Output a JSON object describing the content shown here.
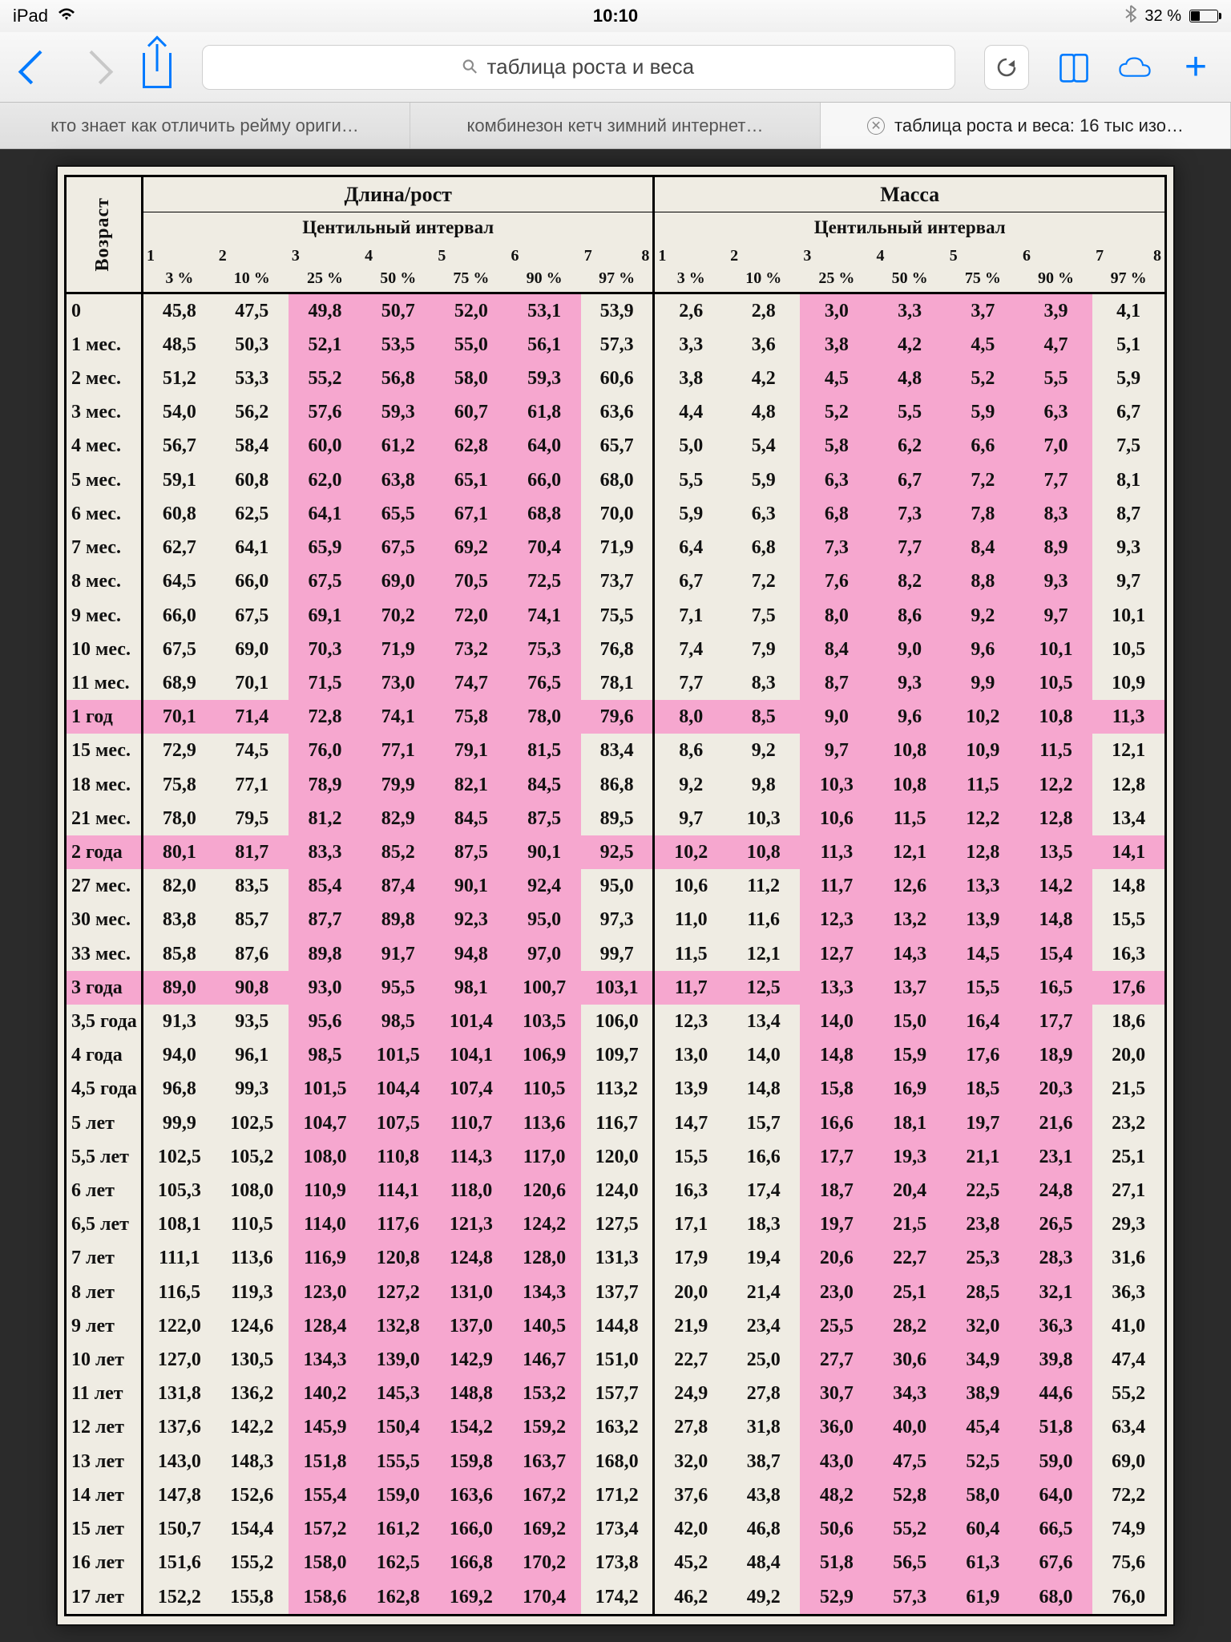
{
  "status": {
    "device": "iPad",
    "time": "10:10",
    "battery_pct": "32 %",
    "bt_glyph": "✲"
  },
  "toolbar": {
    "address_query": "таблица роста и веса",
    "search_glyph": "⚲",
    "reload_glyph": "↻"
  },
  "tabs": [
    {
      "label": "кто знает как отличить рейму ориги…"
    },
    {
      "label": "комбинезон кетч зимний интернет…"
    },
    {
      "label": "таблица роста и веса: 16 тыс изо…"
    }
  ],
  "table": {
    "age_header": "Возраст",
    "length_title": "Длина/рост",
    "mass_title": "Масса",
    "centile_label": "Центильный интервал",
    "col_nums_left": [
      "1",
      "2",
      "3",
      "4",
      "5",
      "6",
      "7",
      "8"
    ],
    "col_nums_right": [
      "1",
      "2",
      "3",
      "4",
      "5",
      "6",
      "7",
      "8"
    ],
    "col_pcts": [
      "3 %",
      "10 %",
      "25 %",
      "50 %",
      "75 %",
      "90 %",
      "97 %"
    ],
    "highlight_color": "#f6a7cf",
    "left_hl_cols": [
      2,
      3,
      4,
      5
    ],
    "right_hl_cols": [
      2,
      3,
      4,
      5
    ],
    "highlight_age_rows": [
      "1 год",
      "2 года",
      "3 года"
    ],
    "rows": [
      {
        "age": "0",
        "L": [
          "45,8",
          "47,5",
          "49,8",
          "50,7",
          "52,0",
          "53,1",
          "53,9"
        ],
        "M": [
          "2,6",
          "2,8",
          "3,0",
          "3,3",
          "3,7",
          "3,9",
          "4,1"
        ]
      },
      {
        "age": "1 мес.",
        "L": [
          "48,5",
          "50,3",
          "52,1",
          "53,5",
          "55,0",
          "56,1",
          "57,3"
        ],
        "M": [
          "3,3",
          "3,6",
          "3,8",
          "4,2",
          "4,5",
          "4,7",
          "5,1"
        ]
      },
      {
        "age": "2 мес.",
        "L": [
          "51,2",
          "53,3",
          "55,2",
          "56,8",
          "58,0",
          "59,3",
          "60,6"
        ],
        "M": [
          "3,8",
          "4,2",
          "4,5",
          "4,8",
          "5,2",
          "5,5",
          "5,9"
        ]
      },
      {
        "age": "3 мес.",
        "L": [
          "54,0",
          "56,2",
          "57,6",
          "59,3",
          "60,7",
          "61,8",
          "63,6"
        ],
        "M": [
          "4,4",
          "4,8",
          "5,2",
          "5,5",
          "5,9",
          "6,3",
          "6,7"
        ]
      },
      {
        "age": "4 мес.",
        "L": [
          "56,7",
          "58,4",
          "60,0",
          "61,2",
          "62,8",
          "64,0",
          "65,7"
        ],
        "M": [
          "5,0",
          "5,4",
          "5,8",
          "6,2",
          "6,6",
          "7,0",
          "7,5"
        ]
      },
      {
        "age": "5 мес.",
        "L": [
          "59,1",
          "60,8",
          "62,0",
          "63,8",
          "65,1",
          "66,0",
          "68,0"
        ],
        "M": [
          "5,5",
          "5,9",
          "6,3",
          "6,7",
          "7,2",
          "7,7",
          "8,1"
        ]
      },
      {
        "age": "6 мес.",
        "L": [
          "60,8",
          "62,5",
          "64,1",
          "65,5",
          "67,1",
          "68,8",
          "70,0"
        ],
        "M": [
          "5,9",
          "6,3",
          "6,8",
          "7,3",
          "7,8",
          "8,3",
          "8,7"
        ]
      },
      {
        "age": "7 мес.",
        "L": [
          "62,7",
          "64,1",
          "65,9",
          "67,5",
          "69,2",
          "70,4",
          "71,9"
        ],
        "M": [
          "6,4",
          "6,8",
          "7,3",
          "7,7",
          "8,4",
          "8,9",
          "9,3"
        ]
      },
      {
        "age": "8 мес.",
        "L": [
          "64,5",
          "66,0",
          "67,5",
          "69,0",
          "70,5",
          "72,5",
          "73,7"
        ],
        "M": [
          "6,7",
          "7,2",
          "7,6",
          "8,2",
          "8,8",
          "9,3",
          "9,7"
        ]
      },
      {
        "age": "9 мес.",
        "L": [
          "66,0",
          "67,5",
          "69,1",
          "70,2",
          "72,0",
          "74,1",
          "75,5"
        ],
        "M": [
          "7,1",
          "7,5",
          "8,0",
          "8,6",
          "9,2",
          "9,7",
          "10,1"
        ]
      },
      {
        "age": "10 мес.",
        "L": [
          "67,5",
          "69,0",
          "70,3",
          "71,9",
          "73,2",
          "75,3",
          "76,8"
        ],
        "M": [
          "7,4",
          "7,9",
          "8,4",
          "9,0",
          "9,6",
          "10,1",
          "10,5"
        ]
      },
      {
        "age": "11 мес.",
        "L": [
          "68,9",
          "70,1",
          "71,5",
          "73,0",
          "74,7",
          "76,5",
          "78,1"
        ],
        "M": [
          "7,7",
          "8,3",
          "8,7",
          "9,3",
          "9,9",
          "10,5",
          "10,9"
        ]
      },
      {
        "age": "1 год",
        "L": [
          "70,1",
          "71,4",
          "72,8",
          "74,1",
          "75,8",
          "78,0",
          "79,6"
        ],
        "M": [
          "8,0",
          "8,5",
          "9,0",
          "9,6",
          "10,2",
          "10,8",
          "11,3"
        ]
      },
      {
        "age": "15 мес.",
        "L": [
          "72,9",
          "74,5",
          "76,0",
          "77,1",
          "79,1",
          "81,5",
          "83,4"
        ],
        "M": [
          "8,6",
          "9,2",
          "9,7",
          "10,8",
          "10,9",
          "11,5",
          "12,1"
        ]
      },
      {
        "age": "18 мес.",
        "L": [
          "75,8",
          "77,1",
          "78,9",
          "79,9",
          "82,1",
          "84,5",
          "86,8"
        ],
        "M": [
          "9,2",
          "9,8",
          "10,3",
          "10,8",
          "11,5",
          "12,2",
          "12,8"
        ]
      },
      {
        "age": "21 мес.",
        "L": [
          "78,0",
          "79,5",
          "81,2",
          "82,9",
          "84,5",
          "87,5",
          "89,5"
        ],
        "M": [
          "9,7",
          "10,3",
          "10,6",
          "11,5",
          "12,2",
          "12,8",
          "13,4"
        ]
      },
      {
        "age": "2 года",
        "L": [
          "80,1",
          "81,7",
          "83,3",
          "85,2",
          "87,5",
          "90,1",
          "92,5"
        ],
        "M": [
          "10,2",
          "10,8",
          "11,3",
          "12,1",
          "12,8",
          "13,5",
          "14,1"
        ]
      },
      {
        "age": "27 мес.",
        "L": [
          "82,0",
          "83,5",
          "85,4",
          "87,4",
          "90,1",
          "92,4",
          "95,0"
        ],
        "M": [
          "10,6",
          "11,2",
          "11,7",
          "12,6",
          "13,3",
          "14,2",
          "14,8"
        ]
      },
      {
        "age": "30 мес.",
        "L": [
          "83,8",
          "85,7",
          "87,7",
          "89,8",
          "92,3",
          "95,0",
          "97,3"
        ],
        "M": [
          "11,0",
          "11,6",
          "12,3",
          "13,2",
          "13,9",
          "14,8",
          "15,5"
        ]
      },
      {
        "age": "33 мес.",
        "L": [
          "85,8",
          "87,6",
          "89,8",
          "91,7",
          "94,8",
          "97,0",
          "99,7"
        ],
        "M": [
          "11,5",
          "12,1",
          "12,7",
          "14,3",
          "14,5",
          "15,4",
          "16,3"
        ]
      },
      {
        "age": "3 года",
        "L": [
          "89,0",
          "90,8",
          "93,0",
          "95,5",
          "98,1",
          "100,7",
          "103,1"
        ],
        "M": [
          "11,7",
          "12,5",
          "13,3",
          "13,7",
          "15,5",
          "16,5",
          "17,6"
        ]
      },
      {
        "age": "3,5 года",
        "L": [
          "91,3",
          "93,5",
          "95,6",
          "98,5",
          "101,4",
          "103,5",
          "106,0"
        ],
        "M": [
          "12,3",
          "13,4",
          "14,0",
          "15,0",
          "16,4",
          "17,7",
          "18,6"
        ]
      },
      {
        "age": "4 года",
        "L": [
          "94,0",
          "96,1",
          "98,5",
          "101,5",
          "104,1",
          "106,9",
          "109,7"
        ],
        "M": [
          "13,0",
          "14,0",
          "14,8",
          "15,9",
          "17,6",
          "18,9",
          "20,0"
        ]
      },
      {
        "age": "4,5 года",
        "L": [
          "96,8",
          "99,3",
          "101,5",
          "104,4",
          "107,4",
          "110,5",
          "113,2"
        ],
        "M": [
          "13,9",
          "14,8",
          "15,8",
          "16,9",
          "18,5",
          "20,3",
          "21,5"
        ]
      },
      {
        "age": "5 лет",
        "L": [
          "99,9",
          "102,5",
          "104,7",
          "107,5",
          "110,7",
          "113,6",
          "116,7"
        ],
        "M": [
          "14,7",
          "15,7",
          "16,6",
          "18,1",
          "19,7",
          "21,6",
          "23,2"
        ]
      },
      {
        "age": "5,5 лет",
        "L": [
          "102,5",
          "105,2",
          "108,0",
          "110,8",
          "114,3",
          "117,0",
          "120,0"
        ],
        "M": [
          "15,5",
          "16,6",
          "17,7",
          "19,3",
          "21,1",
          "23,1",
          "25,1"
        ]
      },
      {
        "age": "6 лет",
        "L": [
          "105,3",
          "108,0",
          "110,9",
          "114,1",
          "118,0",
          "120,6",
          "124,0"
        ],
        "M": [
          "16,3",
          "17,4",
          "18,7",
          "20,4",
          "22,5",
          "24,8",
          "27,1"
        ]
      },
      {
        "age": "6,5 лет",
        "L": [
          "108,1",
          "110,5",
          "114,0",
          "117,6",
          "121,3",
          "124,2",
          "127,5"
        ],
        "M": [
          "17,1",
          "18,3",
          "19,7",
          "21,5",
          "23,8",
          "26,5",
          "29,3"
        ]
      },
      {
        "age": "7 лет",
        "L": [
          "111,1",
          "113,6",
          "116,9",
          "120,8",
          "124,8",
          "128,0",
          "131,3"
        ],
        "M": [
          "17,9",
          "19,4",
          "20,6",
          "22,7",
          "25,3",
          "28,3",
          "31,6"
        ]
      },
      {
        "age": "8 лет",
        "L": [
          "116,5",
          "119,3",
          "123,0",
          "127,2",
          "131,0",
          "134,3",
          "137,7"
        ],
        "M": [
          "20,0",
          "21,4",
          "23,0",
          "25,1",
          "28,5",
          "32,1",
          "36,3"
        ]
      },
      {
        "age": "9 лет",
        "L": [
          "122,0",
          "124,6",
          "128,4",
          "132,8",
          "137,0",
          "140,5",
          "144,8"
        ],
        "M": [
          "21,9",
          "23,4",
          "25,5",
          "28,2",
          "32,0",
          "36,3",
          "41,0"
        ]
      },
      {
        "age": "10 лет",
        "L": [
          "127,0",
          "130,5",
          "134,3",
          "139,0",
          "142,9",
          "146,7",
          "151,0"
        ],
        "M": [
          "22,7",
          "25,0",
          "27,7",
          "30,6",
          "34,9",
          "39,8",
          "47,4"
        ]
      },
      {
        "age": "11 лет",
        "L": [
          "131,8",
          "136,2",
          "140,2",
          "145,3",
          "148,8",
          "153,2",
          "157,7"
        ],
        "M": [
          "24,9",
          "27,8",
          "30,7",
          "34,3",
          "38,9",
          "44,6",
          "55,2"
        ]
      },
      {
        "age": "12 лет",
        "L": [
          "137,6",
          "142,2",
          "145,9",
          "150,4",
          "154,2",
          "159,2",
          "163,2"
        ],
        "M": [
          "27,8",
          "31,8",
          "36,0",
          "40,0",
          "45,4",
          "51,8",
          "63,4"
        ]
      },
      {
        "age": "13 лет",
        "L": [
          "143,0",
          "148,3",
          "151,8",
          "155,5",
          "159,8",
          "163,7",
          "168,0"
        ],
        "M": [
          "32,0",
          "38,7",
          "43,0",
          "47,5",
          "52,5",
          "59,0",
          "69,0"
        ]
      },
      {
        "age": "14 лет",
        "L": [
          "147,8",
          "152,6",
          "155,4",
          "159,0",
          "163,6",
          "167,2",
          "171,2"
        ],
        "M": [
          "37,6",
          "43,8",
          "48,2",
          "52,8",
          "58,0",
          "64,0",
          "72,2"
        ]
      },
      {
        "age": "15 лет",
        "L": [
          "150,7",
          "154,4",
          "157,2",
          "161,2",
          "166,0",
          "169,2",
          "173,4"
        ],
        "M": [
          "42,0",
          "46,8",
          "50,6",
          "55,2",
          "60,4",
          "66,5",
          "74,9"
        ]
      },
      {
        "age": "16 лет",
        "L": [
          "151,6",
          "155,2",
          "158,0",
          "162,5",
          "166,8",
          "170,2",
          "173,8"
        ],
        "M": [
          "45,2",
          "48,4",
          "51,8",
          "56,5",
          "61,3",
          "67,6",
          "75,6"
        ]
      },
      {
        "age": "17 лет",
        "L": [
          "152,2",
          "155,8",
          "158,6",
          "162,8",
          "169,2",
          "170,4",
          "174,2"
        ],
        "M": [
          "46,2",
          "49,2",
          "52,9",
          "57,3",
          "61,9",
          "68,0",
          "76,0"
        ]
      }
    ]
  }
}
